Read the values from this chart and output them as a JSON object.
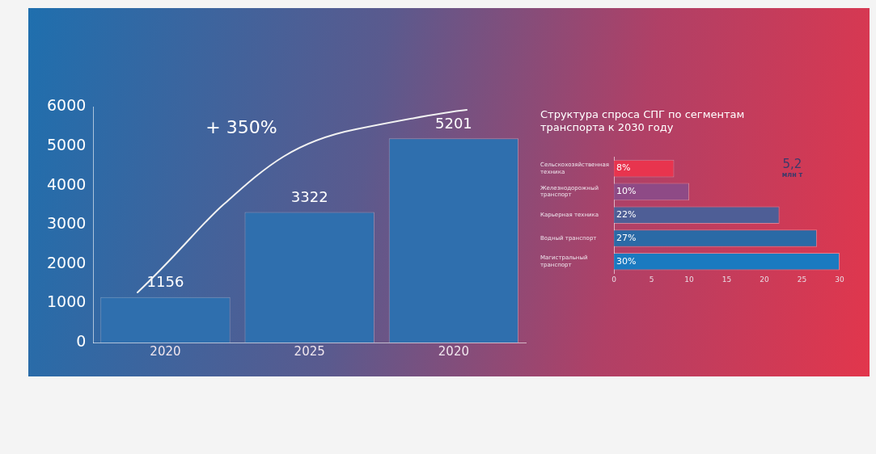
{
  "chart_data": [
    {
      "type": "bar",
      "categories": [
        "2020",
        "2025",
        "2020"
      ],
      "values": [
        1156,
        3322,
        5201
      ],
      "color": "#2f6fae",
      "data_labels": true,
      "ylim": [
        0,
        6000
      ],
      "yticks": [
        0,
        1000,
        2000,
        3000,
        4000,
        5000,
        6000
      ],
      "grid": false,
      "annotations": [
        "+ 350%"
      ]
    },
    {
      "type": "bar",
      "orientation": "horizontal",
      "title": "Структура спроса СПГ по сегментам транспорта к 2030 году",
      "categories": [
        "Сельскохозяйственная техника",
        "Железнодорожный транспорт",
        "Карьерная техника",
        "Водный транспорт",
        "Магистральный транспорт"
      ],
      "values": [
        8,
        10,
        22,
        27,
        30
      ],
      "colors": [
        "#e8344e",
        "#8e4a86",
        "#4e5e96",
        "#2a6aa6",
        "#1a7ac0"
      ],
      "value_labels": [
        "8%",
        "10%",
        "22%",
        "27%",
        "30%"
      ],
      "xlim": [
        0,
        30
      ],
      "xticks": [
        0,
        5,
        10,
        15,
        20,
        25,
        30
      ],
      "grid": false,
      "annotations": [
        "5,2",
        "млн т"
      ]
    }
  ]
}
